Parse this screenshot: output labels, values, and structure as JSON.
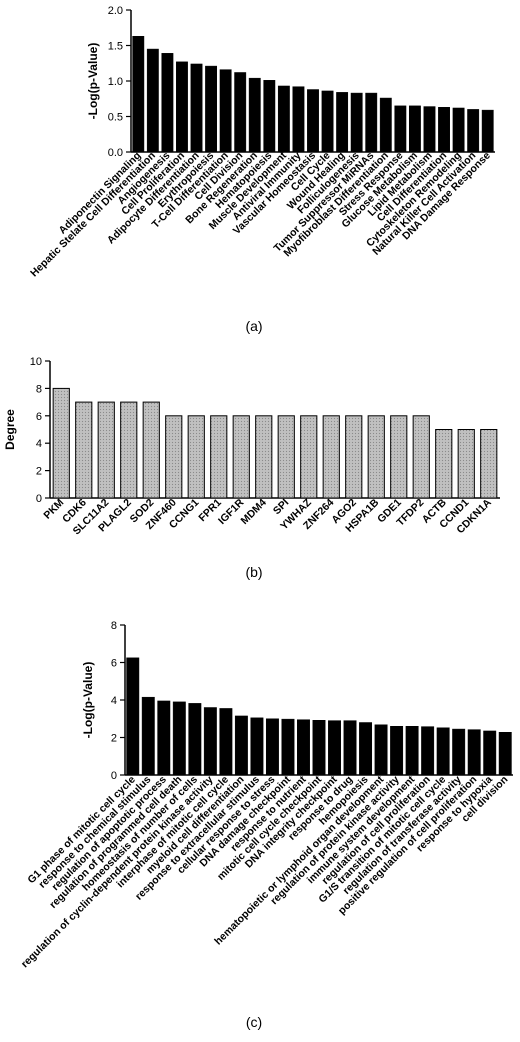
{
  "chart_data": [
    {
      "type": "bar",
      "panel_label": "(a)",
      "title": "",
      "xlabel": "",
      "ylabel": "-Log(p-Value)",
      "ylim": [
        0,
        2.0
      ],
      "yticks": [
        "0.0",
        "0.5",
        "1.0",
        "1.5",
        "2.0"
      ],
      "bar_color": "#000000",
      "categories": [
        "Adiponectin Signaling",
        "Hepatic Stelate Cell Differentiation",
        "Angiogenesis",
        "Cell Proliferation",
        "Adipocyte Differentiation",
        "Erythropoiesis",
        "T-Cell Differentiation",
        "Cell Division",
        "Bone Regeneration",
        "Hematopoiesis",
        "Muscle Development",
        "Antiviral Immunity",
        "Vascular Homeostasis",
        "Cell Cycle",
        "Wound Healing",
        "Folliculogenesis",
        "Tumor Suppressor MiRNAs",
        "Myofibroblast Differentiation",
        "Stress Response",
        "Glucose Metabolism",
        "Lipid Metabolism",
        "Cell Differentiation",
        "Cytoskeleton Remodeling",
        "Natural Killer Cell Activation",
        "DNA Damage Response"
      ],
      "values": [
        1.63,
        1.45,
        1.39,
        1.27,
        1.24,
        1.21,
        1.16,
        1.12,
        1.04,
        1.01,
        0.93,
        0.92,
        0.88,
        0.86,
        0.84,
        0.83,
        0.83,
        0.76,
        0.65,
        0.65,
        0.64,
        0.63,
        0.62,
        0.6,
        0.59
      ]
    },
    {
      "type": "bar",
      "panel_label": "(b)",
      "title": "",
      "xlabel": "",
      "ylabel": "Degree",
      "ylim": [
        0,
        10
      ],
      "yticks": [
        "0",
        "2",
        "4",
        "6",
        "8",
        "10"
      ],
      "bar_color": "#c0c0c0",
      "categories": [
        "PKM",
        "CDK6",
        "SLC11A2",
        "PLAGL2",
        "SOD2",
        "ZNF460",
        "CCNG1",
        "FPR1",
        "IGF1R",
        "MDM4",
        "SPI",
        "YWHAZ",
        "ZNF264",
        "AGO2",
        "HSPA1B",
        "GDE1",
        "TFDP2",
        "ACTB",
        "CCND1",
        "CDKN1A"
      ],
      "values": [
        8,
        7,
        7,
        7,
        7,
        6,
        6,
        6,
        6,
        6,
        6,
        6,
        6,
        6,
        6,
        6,
        6,
        5,
        5,
        5
      ]
    },
    {
      "type": "bar",
      "panel_label": "(c)",
      "title": "",
      "xlabel": "",
      "ylabel": "-Log(p-Value)",
      "ylim": [
        0,
        8
      ],
      "yticks": [
        "0",
        "2",
        "4",
        "6",
        "8"
      ],
      "bar_color": "#000000",
      "categories": [
        "G1 phase of mitotic cell cycle",
        "response to chemical stimulus",
        "regulation of apoptotic process",
        "regulation of programmed cell death",
        "homeostasis of number of cells",
        "regulation of cyclin-dependent protein kinase activity",
        "interphase of mitotic cell cycle",
        "myeloid cell differentiation",
        "response to extracellular stimulus",
        "cellular response to stress",
        "DNA damage checkpoint",
        "response to nutrient",
        "mitotic cell cycle checkpoint",
        "DNA integrity checkpoint",
        "response to drug",
        "hemopoiesis",
        "hematopoietic or lymphoid organ development",
        "regulation of protein kinase activity",
        "immune system development",
        "regulation of cell proliferation",
        "G1/S transition of mitotic cell cycle",
        "regulation of transferase activity",
        "positive regulation of cell proliferation",
        "response to hypoxia",
        "cell division"
      ],
      "values": [
        6.25,
        4.15,
        3.95,
        3.9,
        3.82,
        3.6,
        3.55,
        3.15,
        3.05,
        3.0,
        2.98,
        2.95,
        2.92,
        2.9,
        2.9,
        2.8,
        2.68,
        2.6,
        2.6,
        2.58,
        2.52,
        2.45,
        2.42,
        2.35,
        2.28
      ]
    }
  ]
}
